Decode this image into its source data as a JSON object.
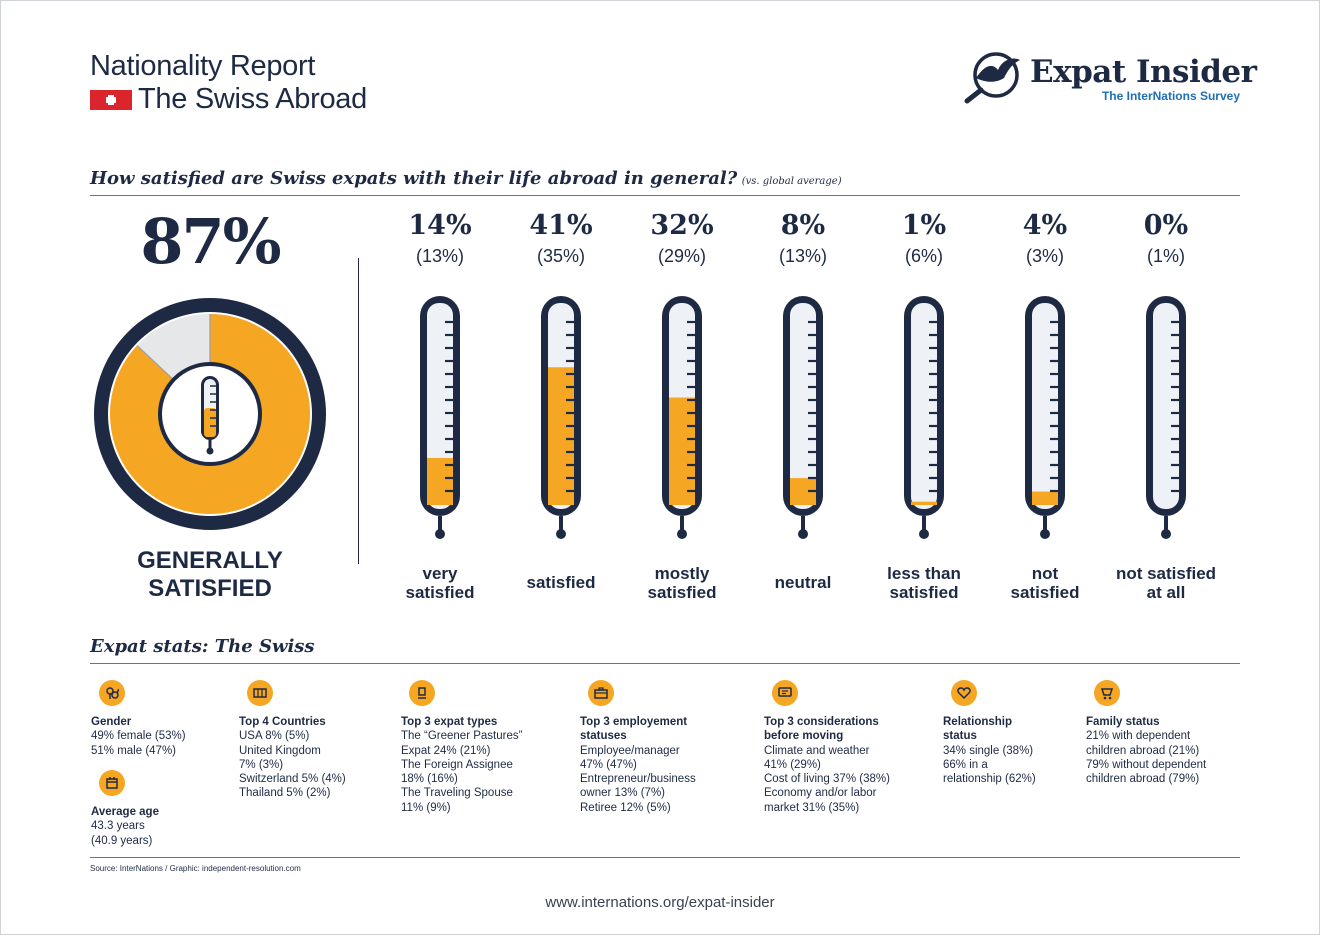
{
  "header": {
    "line1": "Nationality Report",
    "line2": "The Swiss Abroad",
    "brand_name": "Expat Insider",
    "brand_sub": "The InterNations Survey"
  },
  "question": {
    "title": "How satisfied are Swiss expats with their life abroad in general?",
    "note": "(vs. global average)"
  },
  "summary": {
    "percent": "87%",
    "label_line1": "GENERALLY",
    "label_line2": "SATISFIED"
  },
  "colors": {
    "navy": "#1e2a44",
    "orange": "#f5a623",
    "grey": "#e6e7e9",
    "tube": "#eef1f5"
  },
  "chart_data": {
    "type": "bar",
    "categories": [
      "very satisfied",
      "satisfied",
      "mostly satisfied",
      "neutral",
      "less than satisfied",
      "not satisfied",
      "not satisfied at all"
    ],
    "series": [
      {
        "values": [
          14,
          41,
          32,
          8,
          1,
          4,
          0
        ]
      },
      {
        "values": [
          13,
          35,
          29,
          13,
          6,
          3,
          1
        ]
      }
    ],
    "value_labels": [
      "14%",
      "41%",
      "32%",
      "8%",
      "1%",
      "4%",
      "0%"
    ],
    "global_labels": [
      "(13%)",
      "(35%)",
      "(29%)",
      "(13%)",
      "(6%)",
      "(3%)",
      "(1%)"
    ],
    "label_lines": [
      [
        "very",
        "satisfied"
      ],
      [
        "satisfied"
      ],
      [
        "mostly",
        "satisfied"
      ],
      [
        "neutral"
      ],
      [
        "less than",
        "satisfied"
      ],
      [
        "not",
        "satisfied"
      ],
      [
        "not satisfied",
        "at all"
      ]
    ],
    "ylim": [
      0,
      50
    ],
    "donut": {
      "satisfied": 87,
      "other": 13
    }
  },
  "stats": {
    "title": "Expat stats: The Swiss",
    "items": [
      {
        "title": "Gender",
        "lines": [
          "49% female (53%)",
          "51% male (47%)"
        ],
        "icon": "gender-icon"
      },
      {
        "title": "Average age",
        "lines": [
          "43.3 years",
          "(40.9 years)"
        ],
        "icon": "calendar-icon"
      },
      {
        "title": "Top 4 Countries",
        "lines": [
          "USA 8% (5%)",
          "United Kingdom",
          "7% (3%)",
          "Switzerland 5% (4%)",
          "Thailand 5% (2%)"
        ],
        "icon": "map-icon"
      },
      {
        "title": "Top 3 expat types",
        "lines": [
          "The “Greener Pastures”",
          "Expat 24% (21%)",
          "The Foreign Assignee",
          "18% (16%)",
          "The Traveling Spouse",
          "11% (9%)"
        ],
        "icon": "person-icon"
      },
      {
        "title": "Top 3 employement statuses",
        "title_lines": [
          "Top 3 employement",
          "statuses"
        ],
        "lines": [
          "Employee/manager",
          "47% (47%)",
          "Entrepreneur/business",
          "owner 13% (7%)",
          "Retiree 12% (5%)"
        ],
        "icon": "briefcase-icon"
      },
      {
        "title": "Top 3 considerations before moving",
        "title_lines": [
          "Top 3 considerations",
          "before moving"
        ],
        "lines": [
          "Climate and weather",
          "41% (29%)",
          "Cost of living 37% (38%)",
          "Economy and/or labor",
          "market 31% (35%)"
        ],
        "icon": "chat-icon"
      },
      {
        "title": "Relationship status",
        "title_lines": [
          "Relationship",
          "status"
        ],
        "lines": [
          "34% single (38%)",
          "66% in a",
          "relationship (62%)"
        ],
        "icon": "heart-icon"
      },
      {
        "title": "Family status",
        "lines": [
          "21% with dependent",
          "children abroad (21%)",
          "79% without dependent",
          "children abroad (79%)"
        ],
        "icon": "stroller-icon"
      }
    ]
  },
  "footer": {
    "source": "Source: InterNations / Graphic: independent-resolution.com",
    "url": "www.internations.org/expat-insider"
  }
}
